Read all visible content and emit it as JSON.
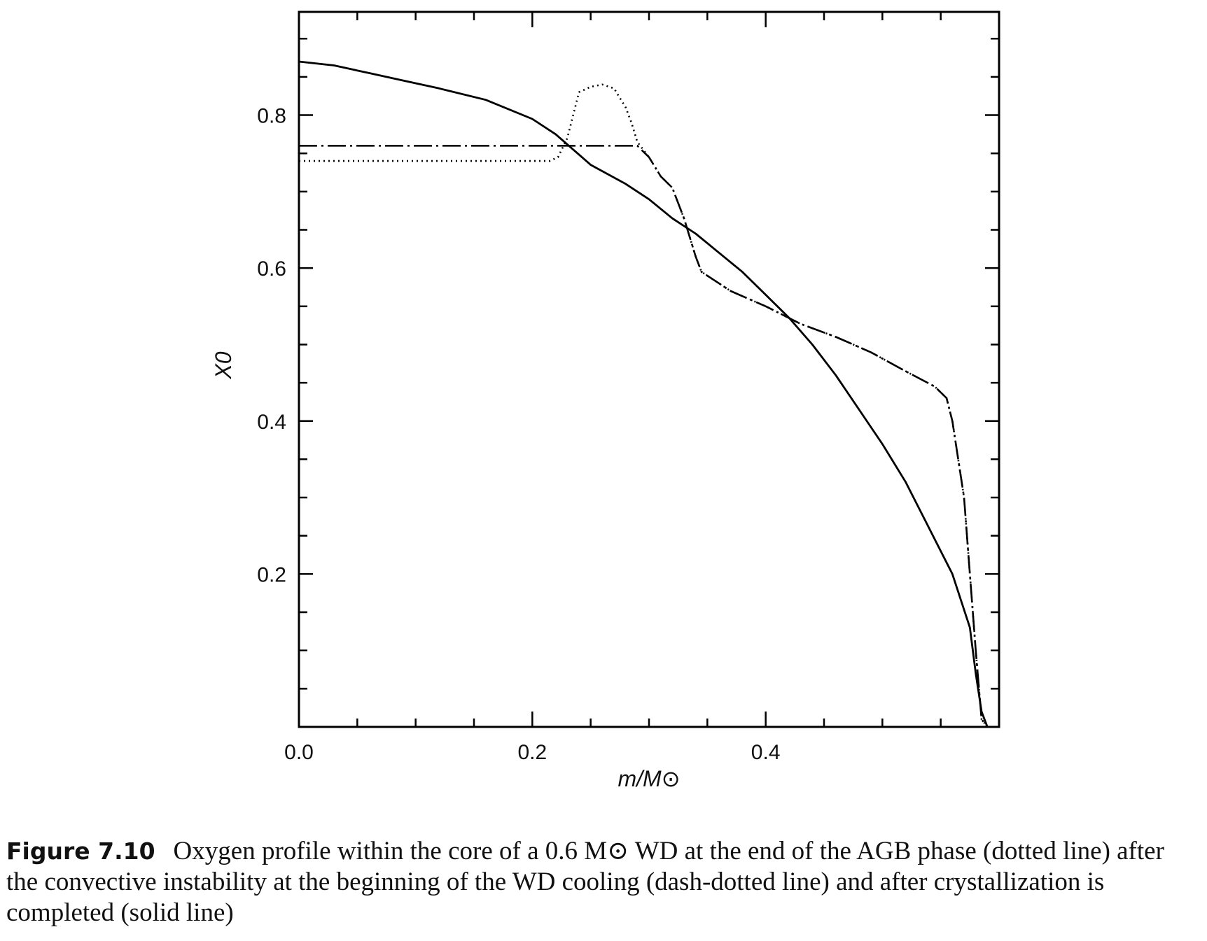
{
  "chart_data": {
    "type": "line",
    "title": "",
    "xlabel": "m/M⊙",
    "ylabel": "X0",
    "xlim": [
      0.0,
      0.6
    ],
    "ylim": [
      0.0,
      0.935
    ],
    "x_ticks": [
      0.0,
      0.2,
      0.4
    ],
    "x_tick_labels": [
      "0.0",
      "0.2",
      "0.4"
    ],
    "y_ticks": [
      0.2,
      0.4,
      0.6,
      0.8
    ],
    "y_tick_labels": [
      "0.2",
      "0.4",
      "0.6",
      "0.8"
    ],
    "grid": false,
    "legend": "none",
    "series": [
      {
        "style": "dotted",
        "x": [
          0.0,
          0.05,
          0.1,
          0.15,
          0.2,
          0.215,
          0.222,
          0.23,
          0.24,
          0.25,
          0.26,
          0.27,
          0.28,
          0.285,
          0.29,
          0.3,
          0.31,
          0.32,
          0.33,
          0.34,
          0.345,
          0.37,
          0.4,
          0.43,
          0.46,
          0.49,
          0.52,
          0.545,
          0.555,
          0.56,
          0.57,
          0.575,
          0.58,
          0.585,
          0.59,
          0.6
        ],
        "y": [
          0.74,
          0.74,
          0.74,
          0.74,
          0.74,
          0.74,
          0.745,
          0.77,
          0.83,
          0.837,
          0.84,
          0.835,
          0.81,
          0.79,
          0.765,
          0.745,
          0.72,
          0.705,
          0.665,
          0.615,
          0.595,
          0.57,
          0.55,
          0.527,
          0.51,
          0.49,
          0.465,
          0.445,
          0.43,
          0.4,
          0.3,
          0.2,
          0.1,
          0.01,
          0.0,
          0.0
        ]
      },
      {
        "style": "dash-dotted",
        "x": [
          0.0,
          0.05,
          0.1,
          0.15,
          0.2,
          0.25,
          0.29,
          0.3,
          0.31,
          0.32,
          0.33,
          0.34,
          0.345,
          0.37,
          0.4,
          0.43,
          0.46,
          0.49,
          0.52,
          0.545,
          0.555,
          0.56,
          0.57,
          0.575,
          0.58,
          0.585,
          0.59,
          0.6
        ],
        "y": [
          0.76,
          0.76,
          0.76,
          0.76,
          0.76,
          0.76,
          0.76,
          0.745,
          0.72,
          0.705,
          0.665,
          0.615,
          0.595,
          0.57,
          0.55,
          0.527,
          0.51,
          0.49,
          0.465,
          0.445,
          0.43,
          0.4,
          0.3,
          0.2,
          0.1,
          0.01,
          0.0,
          0.0
        ]
      },
      {
        "style": "solid",
        "x": [
          0.0,
          0.03,
          0.06,
          0.09,
          0.12,
          0.16,
          0.2,
          0.22,
          0.25,
          0.28,
          0.3,
          0.32,
          0.34,
          0.36,
          0.38,
          0.4,
          0.42,
          0.44,
          0.46,
          0.48,
          0.5,
          0.52,
          0.54,
          0.56,
          0.575,
          0.58,
          0.585,
          0.59,
          0.6
        ],
        "y": [
          0.87,
          0.865,
          0.855,
          0.845,
          0.835,
          0.82,
          0.795,
          0.775,
          0.735,
          0.71,
          0.69,
          0.665,
          0.645,
          0.62,
          0.595,
          0.565,
          0.535,
          0.5,
          0.46,
          0.415,
          0.37,
          0.32,
          0.26,
          0.2,
          0.13,
          0.07,
          0.02,
          0.0,
          0.0
        ]
      }
    ]
  },
  "caption": {
    "figure_label": "Figure 7.10",
    "text": "Oxygen profile within the core of a 0.6 M⊙ WD at the end of the AGB phase (dotted line) after the convective instability at the beginning of the WD cooling (dash-dotted line) and after crystallization is completed (solid line)"
  }
}
